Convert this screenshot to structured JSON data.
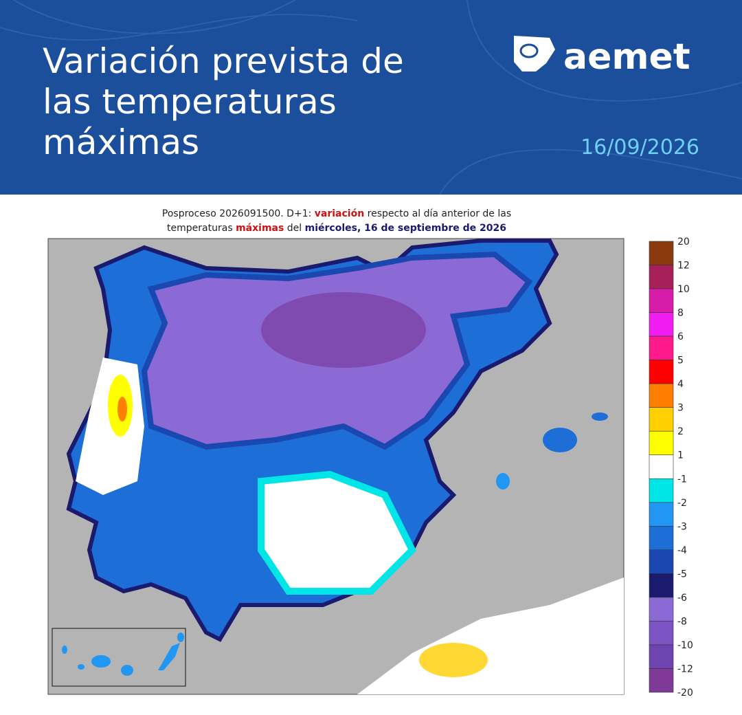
{
  "header": {
    "title_lines": [
      "Variación prevista de",
      "las temperaturas",
      "máximas"
    ],
    "logo_text": "aemet",
    "date": "16/09/2026"
  },
  "map": {
    "subtitle_line1": [
      "Posproceso 2026091500. D+1:",
      "variación",
      "respecto al día anterior de las"
    ],
    "subtitle_line2": [
      "temperaturas",
      "máximas",
      "del",
      "miércoles, 16 de septiembre de 2026"
    ]
  },
  "legend": {
    "labels": [
      "20",
      "12",
      "10",
      "8",
      "6",
      "5",
      "4",
      "3",
      "2",
      "1",
      "-1",
      "-2",
      "-3",
      "-4",
      "-5",
      "-6",
      "-8",
      "-10",
      "-12",
      "-20"
    ],
    "colors": [
      "#8b3a10",
      "#a8205a",
      "#d61ca8",
      "#f01cf0",
      "#ff1a8c",
      "#ff0000",
      "#ff8000",
      "#ffd000",
      "#ffff00",
      "#ffffff",
      "#00e5e5",
      "#2196f3",
      "#1e6ed8",
      "#1a48b0",
      "#1a1a6e",
      "#8c6ad6",
      "#7c54c4",
      "#6e44ae",
      "#7e3a96"
    ]
  }
}
